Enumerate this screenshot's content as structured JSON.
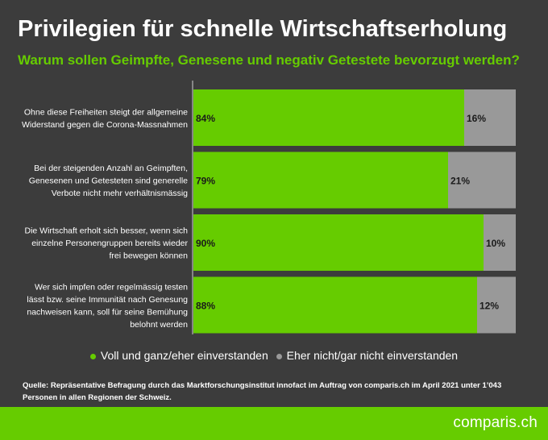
{
  "title": "Privilegien für schnelle Wirtschaftserholung",
  "subtitle": "Warum sollen Geimpfte, Genesene und negativ Getestete bevorzugt werden?",
  "colors": {
    "agree": "#66cc00",
    "disagree": "#999999",
    "background": "#3c3c3c",
    "accent": "#66cc00"
  },
  "chart_data": {
    "type": "bar",
    "orientation": "horizontal",
    "stacked": true,
    "percent": true,
    "categories": [
      [
        "Ohne diese Freiheiten steigt der allgemeine",
        "Widerstand gegen die Corona-Massnahmen"
      ],
      [
        "Bei der steigenden Anzahl an Geimpften,",
        "Genesenen und Getesteten sind generelle",
        "Verbote nicht mehr verhältnismässig"
      ],
      [
        "Die Wirtschaft erholt sich besser, wenn sich",
        "einzelne Personengruppen bereits wieder",
        "frei bewegen können"
      ],
      [
        "Wer sich impfen oder regelmässig testen",
        "lässt bzw. seine Immunität nach Genesung",
        "nachweisen kann, soll für seine Bemühung",
        "belohnt werden"
      ]
    ],
    "series": [
      {
        "name": "Voll und ganz/eher einverstanden",
        "values": [
          84,
          79,
          90,
          88
        ],
        "labels": [
          "84%",
          "79%",
          "90%",
          "88%"
        ]
      },
      {
        "name": "Eher nicht/gar nicht einverstanden",
        "values": [
          16,
          21,
          10,
          12
        ],
        "labels": [
          "16%",
          "21%",
          "10%",
          "12%"
        ]
      }
    ],
    "xlim": [
      0,
      100
    ]
  },
  "legend": {
    "agree": "Voll und ganz/eher einverstanden",
    "disagree": "Eher nicht/gar nicht einverstanden"
  },
  "source": "Quelle: Repräsentative Befragung durch das Marktforschungsinstitut innofact im Auftrag von comparis.ch im April 2021 unter 1’043 Personen in allen Regionen der Schweiz.",
  "brand": "comparis.ch"
}
